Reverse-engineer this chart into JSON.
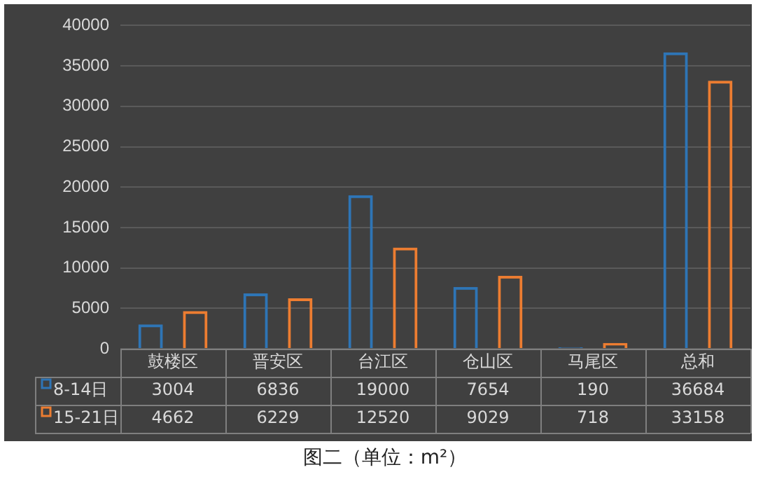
{
  "chart_data": {
    "type": "bar",
    "annotations": [
      "图二（单位：m²）"
    ],
    "categories": [
      "鼓楼区",
      "晋安区",
      "台江区",
      "仓山区",
      "马尾区",
      "总和"
    ],
    "series": [
      {
        "name": "8-14日",
        "color": "#2e75b6",
        "values": [
          3004,
          6836,
          19000,
          7654,
          190,
          36684
        ]
      },
      {
        "name": "15-21日",
        "color": "#ed7d31",
        "values": [
          4662,
          6229,
          12520,
          9029,
          718,
          33158
        ]
      }
    ],
    "ylim": [
      0,
      40000
    ],
    "yticks": [
      0,
      5000,
      10000,
      15000,
      20000,
      25000,
      30000,
      35000,
      40000
    ],
    "grid": "y",
    "legend": "bottom",
    "data_labels": true
  }
}
